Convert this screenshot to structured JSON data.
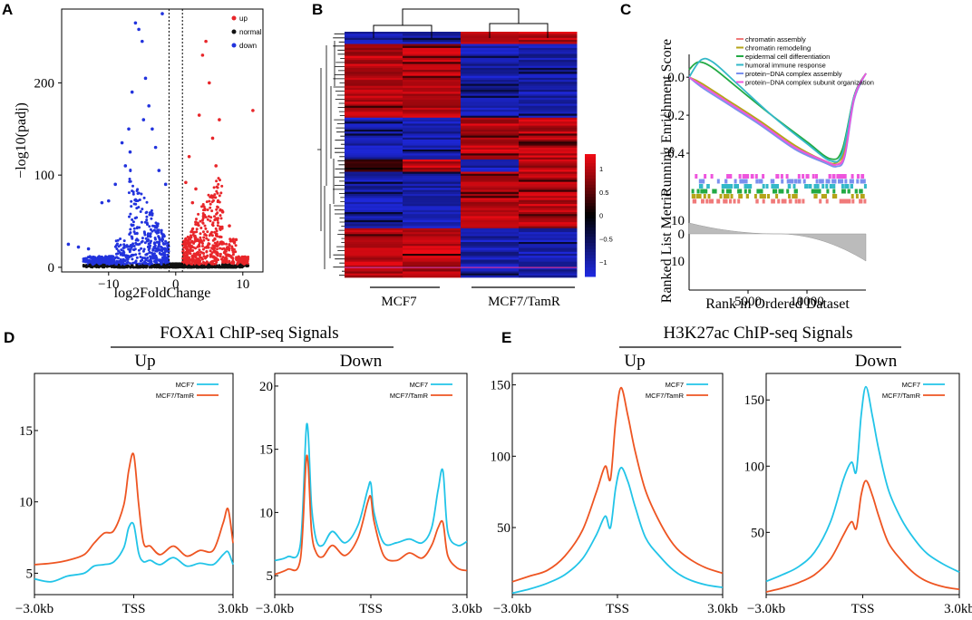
{
  "chart_data": [
    {
      "panel": "A",
      "type": "scatter",
      "xlabel": "log2FoldChange",
      "ylabel": "−log10(padj)",
      "xlim": [
        -17,
        13
      ],
      "ylim": [
        -5,
        280
      ],
      "xticks": [
        -10,
        0,
        10
      ],
      "yticks": [
        0,
        100,
        200
      ],
      "xtick_labels": [
        "−10",
        "0",
        "10"
      ],
      "ytick_labels": [
        "0",
        "100",
        "200"
      ],
      "thresholds_x": [
        -1,
        1
      ],
      "legend": [
        {
          "name": "up",
          "color": "#e8262a"
        },
        {
          "name": "normal",
          "color": "#111111"
        },
        {
          "name": "down",
          "color": "#2233dd"
        }
      ],
      "highlight_points": {
        "down": [
          [
            -16,
            25
          ],
          [
            -14.5,
            22
          ],
          [
            -13,
            20
          ],
          [
            -11,
            70
          ],
          [
            -10,
            72
          ],
          [
            -9,
            90
          ],
          [
            -8,
            135
          ],
          [
            -7,
            150
          ],
          [
            -6.5,
            190
          ],
          [
            -6,
            265
          ],
          [
            -5.5,
            258
          ],
          [
            -5,
            245
          ],
          [
            -4.5,
            205
          ],
          [
            -4,
            175
          ],
          [
            -3.5,
            150
          ],
          [
            -3,
            130
          ],
          [
            -2.5,
            105
          ],
          [
            -2,
            275
          ],
          [
            -1.5,
            90
          ],
          [
            -7.5,
            110
          ],
          [
            -6.8,
            125
          ],
          [
            -4.8,
            160
          ]
        ],
        "up": [
          [
            1.5,
            92
          ],
          [
            2,
            120
          ],
          [
            2.5,
            70
          ],
          [
            3,
            85
          ],
          [
            3.5,
            165
          ],
          [
            4,
            230
          ],
          [
            4.5,
            245
          ],
          [
            5,
            200
          ],
          [
            5.5,
            140
          ],
          [
            6,
            110
          ],
          [
            6.5,
            160
          ],
          [
            7,
            60
          ],
          [
            8,
            45
          ],
          [
            9,
            30
          ],
          [
            11.5,
            170
          ]
        ]
      }
    },
    {
      "panel": "B",
      "type": "heatmap",
      "columns_groups": [
        "MCF7",
        "MCF7/TamR"
      ],
      "colorbar_ticks": [
        "1",
        "0.5",
        "0",
        "−0.5",
        "−1"
      ],
      "colorbar_range": [
        -1,
        1
      ],
      "blocks": [
        {
          "rows": [
            0,
            0.05
          ],
          "values": [
            -1,
            -1,
            1,
            1
          ]
        },
        {
          "rows": [
            0.05,
            0.35
          ],
          "values": [
            1,
            1,
            -1,
            -1
          ]
        },
        {
          "rows": [
            0.35,
            0.52
          ],
          "values": [
            -1,
            -1,
            1,
            1
          ]
        },
        {
          "rows": [
            0.52,
            0.57
          ],
          "values": [
            0.3,
            1,
            -1,
            1
          ]
        },
        {
          "rows": [
            0.57,
            0.8
          ],
          "values": [
            -1,
            -1,
            1,
            1
          ]
        },
        {
          "rows": [
            0.8,
            1.0
          ],
          "values": [
            1,
            1,
            -1,
            -1
          ]
        }
      ]
    },
    {
      "panel": "C",
      "type": "line",
      "title": "",
      "ylabel_top": "Running Enrichment Score",
      "ylabel_bottom": "Ranked List Metric",
      "xlabel": "Rank in Ordered Dataset",
      "xticks": [
        5000,
        10000
      ],
      "yticks_top": [
        "0.0",
        "−0.2",
        "−0.4"
      ],
      "yticks_bottom": [
        "10",
        "0",
        "10"
      ],
      "xlim": [
        0,
        15000
      ],
      "series": [
        {
          "name": "chromatin assembly",
          "color": "#f07a7a",
          "x": [
            0,
            1000,
            3000,
            6000,
            9000,
            11500,
            12500,
            13200,
            14000,
            15000
          ],
          "y": [
            0.0,
            -0.04,
            -0.12,
            -0.24,
            -0.37,
            -0.45,
            -0.46,
            -0.4,
            -0.1,
            0.02
          ]
        },
        {
          "name": "chromatin remodeling",
          "color": "#b5a418",
          "x": [
            0,
            1000,
            3000,
            6000,
            9000,
            11500,
            12500,
            13200,
            14000,
            15000
          ],
          "y": [
            0.0,
            -0.03,
            -0.11,
            -0.23,
            -0.36,
            -0.44,
            -0.45,
            -0.38,
            -0.1,
            0.02
          ]
        },
        {
          "name": "epidermal cell differentiation",
          "color": "#22aa44",
          "x": [
            0,
            800,
            2000,
            4000,
            7000,
            10000,
            12000,
            13000,
            14000,
            15000
          ],
          "y": [
            0.04,
            0.08,
            0.05,
            -0.05,
            -0.2,
            -0.34,
            -0.43,
            -0.38,
            -0.1,
            0.02
          ]
        },
        {
          "name": "humoral immune response",
          "color": "#33b8c8",
          "x": [
            0,
            1000,
            2000,
            4000,
            7000,
            10000,
            12000,
            13000,
            14000,
            15000
          ],
          "y": [
            0.0,
            0.09,
            0.08,
            -0.03,
            -0.2,
            -0.35,
            -0.44,
            -0.4,
            -0.1,
            0.02
          ]
        },
        {
          "name": "protein−DNA complex assembly",
          "color": "#7a90ee",
          "x": [
            0,
            1000,
            3000,
            6000,
            9000,
            11500,
            12500,
            13200,
            14000,
            15000
          ],
          "y": [
            0.0,
            -0.05,
            -0.13,
            -0.25,
            -0.38,
            -0.45,
            -0.47,
            -0.42,
            -0.12,
            0.02
          ]
        },
        {
          "name": "protein−DNA complex subunit organization",
          "color": "#ee55dd",
          "x": [
            0,
            1000,
            3000,
            6000,
            9000,
            11500,
            12500,
            13200,
            14000,
            15000
          ],
          "y": [
            0.0,
            -0.04,
            -0.12,
            -0.24,
            -0.37,
            -0.44,
            -0.46,
            -0.41,
            -0.11,
            0.02
          ]
        }
      ],
      "ylim_top": [
        -0.5,
        0.12
      ]
    },
    {
      "panel": "D",
      "group_title": "FOXA1 ChIP-seq Signals",
      "subplots": [
        {
          "subtitle": "Up",
          "type": "line",
          "xtick_labels": [
            "−3.0kb",
            "TSS",
            "3.0kb"
          ],
          "yticks": [
            5,
            10,
            15
          ],
          "ylim": [
            3.5,
            19
          ],
          "x": [
            -3,
            -2.5,
            -2,
            -1.5,
            -1.2,
            -0.9,
            -0.6,
            -0.3,
            -0.15,
            0,
            0.15,
            0.3,
            0.5,
            0.8,
            1.2,
            1.6,
            2,
            2.4,
            2.7,
            2.85,
            3
          ],
          "series": [
            {
              "name": "MCF7",
              "color": "#22c4e8",
              "y": [
                4.6,
                4.4,
                4.8,
                5.0,
                5.5,
                5.6,
                5.8,
                6.8,
                8.2,
                8.4,
                6.4,
                5.8,
                5.9,
                5.6,
                6.1,
                5.5,
                5.7,
                5.6,
                6.3,
                6.5,
                5.6
              ]
            },
            {
              "name": "MCF7/TamR",
              "color": "#ee5522",
              "y": [
                5.6,
                5.7,
                5.9,
                6.3,
                7.1,
                7.8,
                8.0,
                9.8,
                12.2,
                13.3,
                9.8,
                7.1,
                6.9,
                6.3,
                6.9,
                6.2,
                6.6,
                6.6,
                8.5,
                9.5,
                7.1
              ]
            }
          ]
        },
        {
          "subtitle": "Down",
          "type": "line",
          "xtick_labels": [
            "−3.0kb",
            "TSS",
            "3.0kb"
          ],
          "yticks": [
            5,
            10,
            15,
            20
          ],
          "ylim": [
            3.5,
            21
          ],
          "x": [
            -3,
            -2.6,
            -2.2,
            -2,
            -1.85,
            -1.7,
            -1.5,
            -1.2,
            -0.8,
            -0.4,
            -0.1,
            0,
            0.1,
            0.4,
            0.8,
            1.2,
            1.6,
            1.9,
            2.1,
            2.25,
            2.4,
            2.7,
            3
          ],
          "series": [
            {
              "name": "MCF7",
              "color": "#22c4e8",
              "y": [
                6.2,
                6.5,
                7.5,
                17.0,
                10.5,
                7.8,
                7.4,
                8.5,
                7.6,
                9.0,
                11.8,
                12.3,
                10.0,
                7.6,
                7.6,
                7.9,
                7.6,
                8.8,
                11.8,
                13.3,
                8.5,
                7.4,
                7.7
              ]
            },
            {
              "name": "MCF7/TamR",
              "color": "#ee5522",
              "y": [
                5.1,
                5.5,
                6.3,
                14.5,
                8.5,
                6.8,
                6.5,
                7.4,
                6.6,
                8.0,
                10.8,
                11.2,
                9.3,
                6.6,
                6.2,
                6.8,
                6.4,
                7.4,
                8.8,
                9.2,
                6.6,
                5.6,
                5.4
              ]
            }
          ]
        }
      ]
    },
    {
      "panel": "E",
      "group_title": "H3K27ac ChIP-seq Signals",
      "subplots": [
        {
          "subtitle": "Up",
          "type": "line",
          "xtick_labels": [
            "−3.0kb",
            "TSS",
            "3.0kb"
          ],
          "yticks": [
            50,
            100,
            150
          ],
          "ylim": [
            3,
            158
          ],
          "x": [
            -3,
            -2.5,
            -2,
            -1.5,
            -1,
            -0.6,
            -0.35,
            -0.2,
            -0.05,
            0.1,
            0.3,
            0.5,
            0.8,
            1.2,
            1.6,
            2,
            2.5,
            3
          ],
          "series": [
            {
              "name": "MCF7",
              "color": "#22c4e8",
              "y": [
                4,
                7,
                11,
                17,
                28,
                45,
                58,
                50,
                78,
                92,
                82,
                65,
                43,
                30,
                20,
                14,
                10,
                8
              ]
            },
            {
              "name": "MCF7/TamR",
              "color": "#ee5522",
              "y": [
                12,
                16,
                20,
                30,
                48,
                75,
                93,
                84,
                125,
                148,
                128,
                104,
                76,
                54,
                38,
                29,
                22,
                18
              ]
            }
          ]
        },
        {
          "subtitle": "Down",
          "type": "line",
          "xtick_labels": [
            "−3.0kb",
            "TSS",
            "3.0kb"
          ],
          "yticks": [
            50,
            100,
            150
          ],
          "ylim": [
            3,
            170
          ],
          "x": [
            -3,
            -2.5,
            -2,
            -1.5,
            -1,
            -0.6,
            -0.35,
            -0.2,
            -0.05,
            0.1,
            0.3,
            0.5,
            0.8,
            1.2,
            1.6,
            2,
            2.5,
            3
          ],
          "series": [
            {
              "name": "MCF7",
              "color": "#22c4e8",
              "y": [
                13,
                18,
                24,
                35,
                58,
                90,
                103,
                96,
                138,
                160,
                138,
                112,
                82,
                60,
                45,
                34,
                26,
                20
              ]
            },
            {
              "name": "MCF7/TamR",
              "color": "#ee5522",
              "y": [
                5,
                8,
                12,
                18,
                30,
                48,
                58,
                53,
                78,
                89,
                78,
                62,
                42,
                29,
                19,
                13,
                9,
                7
              ]
            }
          ]
        }
      ]
    }
  ],
  "labels": {
    "panel_a": "A",
    "panel_b": "B",
    "panel_c": "C",
    "panel_d": "D",
    "panel_e": "E"
  }
}
